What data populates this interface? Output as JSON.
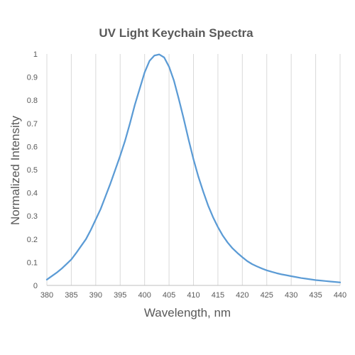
{
  "chart_data": {
    "type": "line",
    "title": "UV Light Keychain Spectra",
    "xlabel": "Wavelength, nm",
    "ylabel": "Normalized Intensity",
    "xlim": [
      380,
      440
    ],
    "ylim": [
      0,
      1
    ],
    "grid": {
      "vertical": true,
      "horizontal": false
    },
    "x_ticks": [
      "380",
      "385",
      "390",
      "395",
      "400",
      "405",
      "410",
      "415",
      "420",
      "425",
      "430",
      "435",
      "440"
    ],
    "y_ticks": [
      "0",
      "0.1",
      "0.2",
      "0.3",
      "0.4",
      "0.5",
      "0.6",
      "0.7",
      "0.8",
      "0.9",
      "1"
    ],
    "line_color": "#5B9BD5",
    "series": [
      {
        "x": [
          380,
          381,
          382,
          383,
          384,
          385,
          386,
          387,
          388,
          389,
          390,
          391,
          392,
          393,
          394,
          395,
          396,
          397,
          398,
          399,
          400,
          401,
          402,
          403,
          404,
          405,
          406,
          407,
          408,
          409,
          410,
          411,
          412,
          413,
          414,
          415,
          416,
          417,
          418,
          419,
          420,
          421,
          422,
          423,
          424,
          425,
          426,
          427,
          428,
          429,
          430,
          431,
          432,
          433,
          434,
          435,
          436,
          437,
          438,
          439,
          440
        ],
        "values": [
          0.025,
          0.04,
          0.055,
          0.072,
          0.092,
          0.112,
          0.14,
          0.17,
          0.2,
          0.24,
          0.285,
          0.33,
          0.385,
          0.44,
          0.5,
          0.56,
          0.625,
          0.7,
          0.78,
          0.85,
          0.92,
          0.97,
          0.993,
          0.998,
          0.985,
          0.945,
          0.885,
          0.805,
          0.72,
          0.63,
          0.545,
          0.47,
          0.405,
          0.345,
          0.295,
          0.252,
          0.215,
          0.185,
          0.16,
          0.14,
          0.122,
          0.105,
          0.092,
          0.082,
          0.073,
          0.065,
          0.059,
          0.053,
          0.048,
          0.044,
          0.04,
          0.036,
          0.032,
          0.029,
          0.026,
          0.023,
          0.021,
          0.019,
          0.017,
          0.015,
          0.013
        ]
      }
    ]
  }
}
